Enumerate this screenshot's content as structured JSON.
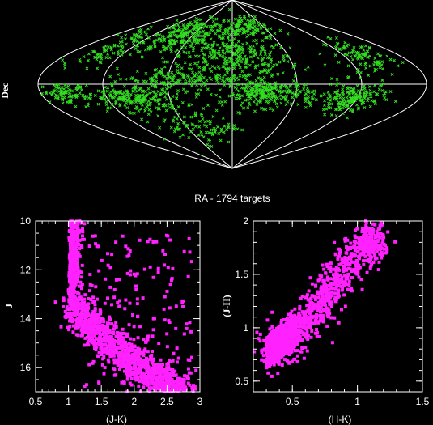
{
  "colors": {
    "background": "#000000",
    "sky_points": "#33dd22",
    "cmd_points": "#ff22ff",
    "axes": "#ffffff"
  },
  "chart_data": [
    {
      "type": "scatter",
      "projection": "sinusoidal all-sky",
      "title": "",
      "xlabel": "RA - 1794 targets",
      "ylabel": "Dec",
      "xticks": [],
      "yticks": [],
      "grid": true,
      "n_targets": 1794,
      "clusters": [
        {
          "ra_center": 0,
          "dec_center": 25,
          "ra_spread": 55,
          "dec_spread": 28,
          "count": 380
        },
        {
          "ra_center": -75,
          "dec_center": 50,
          "ra_spread": 45,
          "dec_spread": 15,
          "count": 220
        },
        {
          "ra_center": 140,
          "dec_center": 30,
          "ra_spread": 25,
          "dec_spread": 18,
          "count": 100
        },
        {
          "ra_center": -145,
          "dec_center": 40,
          "ra_spread": 20,
          "dec_spread": 20,
          "count": 80
        },
        {
          "ra_center": -95,
          "dec_center": -15,
          "ra_spread": 40,
          "dec_spread": 12,
          "count": 230
        },
        {
          "ra_center": 35,
          "dec_center": -10,
          "ra_spread": 35,
          "dec_spread": 12,
          "count": 240
        },
        {
          "ra_center": 115,
          "dec_center": -15,
          "ra_spread": 25,
          "dec_spread": 14,
          "count": 180
        },
        {
          "ra_center": -160,
          "dec_center": -10,
          "ra_spread": 15,
          "dec_spread": 10,
          "count": 80
        },
        {
          "ra_center": 20,
          "dec_center": 60,
          "ra_spread": 40,
          "dec_spread": 10,
          "count": 100
        },
        {
          "ra_center": -40,
          "dec_center": -45,
          "ra_spread": 40,
          "dec_spread": 15,
          "count": 90
        },
        {
          "ra_center": -60,
          "dec_center": 5,
          "ra_spread": 45,
          "dec_spread": 10,
          "count": 94
        }
      ]
    },
    {
      "type": "scatter",
      "title": "",
      "xlabel": "(J-K)",
      "ylabel": "J",
      "xlim": [
        0.5,
        3
      ],
      "ylim": [
        17,
        10
      ],
      "yinverted": true,
      "xticks": [
        "0.5",
        "1",
        "1.5",
        "2",
        "2.5",
        "3"
      ],
      "yticks": [
        "10",
        "12",
        "14",
        "16"
      ],
      "sequence_approx": {
        "vertical_edge": {
          "x": 1.0,
          "y_from": 10.0,
          "y_to": 13.6
        },
        "main_band": [
          {
            "x": 1.0,
            "y": 13.6
          },
          {
            "x": 1.2,
            "y": 14.2
          },
          {
            "x": 1.5,
            "y": 15.0
          },
          {
            "x": 1.8,
            "y": 15.7
          },
          {
            "x": 2.1,
            "y": 16.3
          },
          {
            "x": 2.4,
            "y": 16.8
          },
          {
            "x": 2.7,
            "y": 17.0
          }
        ],
        "point_count": 1794
      }
    },
    {
      "type": "scatter",
      "title": "",
      "xlabel": "(H-K)",
      "ylabel": "(J-H)",
      "xlim": [
        0.2,
        1.5
      ],
      "ylim": [
        0.4,
        2
      ],
      "xticks": [
        "0.5",
        "1",
        "1.5"
      ],
      "yticks": [
        "0.5",
        "1",
        "1.5",
        "2"
      ],
      "sequence_approx": {
        "band": [
          {
            "x": 0.3,
            "y": 0.78
          },
          {
            "x": 0.45,
            "y": 0.85
          },
          {
            "x": 0.6,
            "y": 1.05
          },
          {
            "x": 0.75,
            "y": 1.3
          },
          {
            "x": 0.9,
            "y": 1.55
          },
          {
            "x": 1.05,
            "y": 1.75
          },
          {
            "x": 1.15,
            "y": 1.9
          }
        ],
        "point_count": 1794
      }
    }
  ]
}
